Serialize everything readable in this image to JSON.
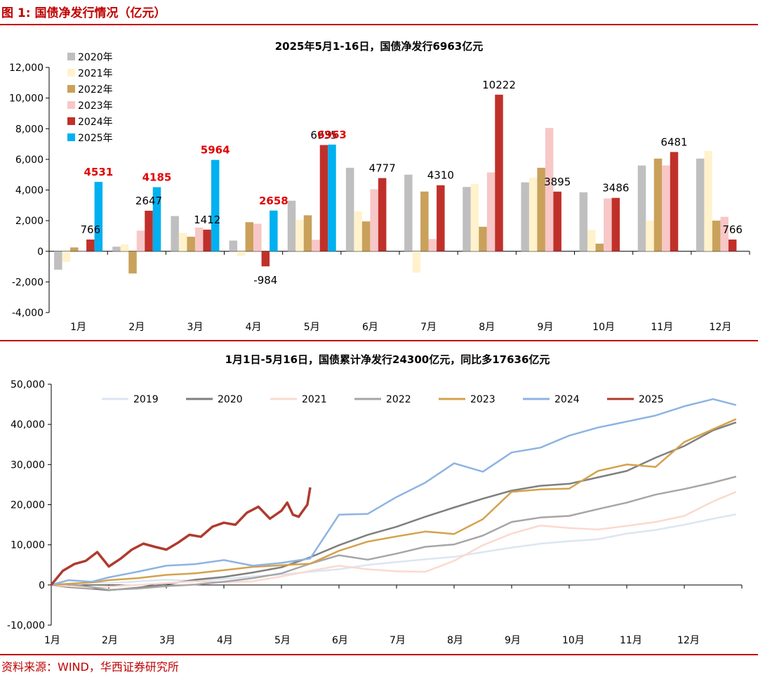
{
  "figure_title": "图 1:  国债净发行情况（亿元）",
  "source_note": "资料来源：WIND，华西证券研究所",
  "colors": {
    "brand_red": "#c00000",
    "y2020": "#bfbfbf",
    "y2021": "#fff2cc",
    "y2022": "#c9a15a",
    "y2023": "#f8c7c7",
    "y2024": "#c0302a",
    "y2025": "#00b0f0",
    "highlight_label": "#e00000",
    "l2019": "#dce6f2",
    "l2020": "#7f7f7f",
    "l2021": "#fbd9cf",
    "l2022": "#a6a6a6",
    "l2023": "#d4a24c",
    "l2024": "#8db4e2",
    "l2025": "#b03a2e"
  },
  "chart_data": [
    {
      "type": "bar",
      "title": "2025年5月1-16日，国债净发行6963亿元",
      "categories": [
        "1月",
        "2月",
        "3月",
        "4月",
        "5月",
        "6月",
        "7月",
        "8月",
        "9月",
        "10月",
        "11月",
        "12月"
      ],
      "ylim": [
        -4000,
        12000
      ],
      "yticks": [
        -4000,
        -2000,
        0,
        2000,
        4000,
        6000,
        8000,
        10000,
        12000
      ],
      "ytick_labels": [
        "-4,000",
        "-2,000",
        "0",
        "2,000",
        "4,000",
        "6,000",
        "8,000",
        "10,000",
        "12,000"
      ],
      "legend_position": "top-left",
      "series": [
        {
          "name": "2020年",
          "color_key": "y2020",
          "values": [
            -1200,
            300,
            2300,
            700,
            3300,
            5450,
            5000,
            4200,
            4500,
            3850,
            5600,
            6050
          ]
        },
        {
          "name": "2021年",
          "color_key": "y2021",
          "values": [
            -700,
            450,
            1200,
            -300,
            2050,
            2600,
            -1400,
            4400,
            4800,
            1400,
            2000,
            6550
          ]
        },
        {
          "name": "2022年",
          "color_key": "y2022",
          "values": [
            250,
            -1450,
            950,
            1900,
            2350,
            1950,
            3900,
            1600,
            5450,
            500,
            6050,
            2000
          ]
        },
        {
          "name": "2023年",
          "color_key": "y2023",
          "values": [
            -50,
            1350,
            1550,
            1800,
            750,
            4050,
            800,
            5150,
            8050,
            3450,
            5600,
            2250
          ]
        },
        {
          "name": "2024年",
          "color_key": "y2024",
          "values": [
            766,
            2647,
            1412,
            -984,
            6935,
            4777,
            4310,
            10222,
            3895,
            3486,
            6481,
            766
          ]
        },
        {
          "name": "2025年",
          "color_key": "y2025",
          "values": [
            4531,
            4185,
            5964,
            2658,
            6963,
            null,
            null,
            null,
            null,
            null,
            null,
            null
          ]
        }
      ],
      "data_labels": [
        {
          "text": "766",
          "series": 4,
          "index": 0,
          "style": "black"
        },
        {
          "text": "2647",
          "series": 4,
          "index": 1,
          "style": "black"
        },
        {
          "text": "1412",
          "series": 4,
          "index": 2,
          "style": "black"
        },
        {
          "text": "-984",
          "series": 4,
          "index": 3,
          "style": "black"
        },
        {
          "text": "6935",
          "series": 4,
          "index": 4,
          "style": "black"
        },
        {
          "text": "4777",
          "series": 4,
          "index": 5,
          "style": "black"
        },
        {
          "text": "4310",
          "series": 4,
          "index": 6,
          "style": "black"
        },
        {
          "text": "10222",
          "series": 4,
          "index": 7,
          "style": "black"
        },
        {
          "text": "3895",
          "series": 4,
          "index": 8,
          "style": "black"
        },
        {
          "text": "3486",
          "series": 4,
          "index": 9,
          "style": "black"
        },
        {
          "text": "6481",
          "series": 4,
          "index": 10,
          "style": "black"
        },
        {
          "text": "766",
          "series": 4,
          "index": 11,
          "style": "black"
        },
        {
          "text": "4531",
          "series": 5,
          "index": 0,
          "style": "red"
        },
        {
          "text": "4185",
          "series": 5,
          "index": 1,
          "style": "red"
        },
        {
          "text": "5964",
          "series": 5,
          "index": 2,
          "style": "red"
        },
        {
          "text": "2658",
          "series": 5,
          "index": 3,
          "style": "red"
        },
        {
          "text": "6963",
          "series": 5,
          "index": 4,
          "style": "red"
        }
      ]
    },
    {
      "type": "line",
      "title": "1月1日-5月16日，国债累计净发行24300亿元，同比多17636亿元",
      "x_tick_labels": [
        "1月",
        "2月",
        "3月",
        "4月",
        "5月",
        "6月",
        "7月",
        "8月",
        "9月",
        "10月",
        "11月",
        "12月"
      ],
      "ylim": [
        -10000,
        50000
      ],
      "yticks": [
        -10000,
        0,
        10000,
        20000,
        30000,
        40000,
        50000
      ],
      "ytick_labels": [
        "-10,000",
        "0",
        "10,000",
        "20,000",
        "30,000",
        "40,000",
        "50,000"
      ],
      "legend_position": "top",
      "series": [
        {
          "name": "2019",
          "color_key": "l2019",
          "x": [
            1,
            1.3,
            1.7,
            2,
            2.5,
            3,
            3.5,
            4,
            4.5,
            5,
            5.5,
            6,
            6.5,
            7,
            7.5,
            8,
            8.5,
            9,
            9.5,
            10,
            10.5,
            11,
            11.5,
            12,
            12.5,
            12.9
          ],
          "values": [
            0,
            300,
            600,
            400,
            900,
            1300,
            1000,
            1500,
            2100,
            2600,
            3300,
            3900,
            5000,
            5700,
            6400,
            7000,
            8200,
            9300,
            10300,
            10900,
            11400,
            12800,
            13700,
            15000,
            16500,
            17600
          ]
        },
        {
          "name": "2020",
          "color_key": "l2020",
          "x": [
            1,
            1.3,
            1.7,
            2,
            2.5,
            3,
            3.5,
            4,
            4.5,
            5,
            5.5,
            6,
            6.5,
            7,
            7.5,
            8,
            8.5,
            9,
            9.5,
            10,
            10.5,
            11,
            11.5,
            12,
            12.5,
            12.9
          ],
          "values": [
            0,
            -500,
            -900,
            -1300,
            -700,
            200,
            1300,
            2000,
            3100,
            4400,
            6900,
            9900,
            12500,
            14500,
            17000,
            19300,
            21500,
            23500,
            24700,
            25200,
            26800,
            28400,
            31700,
            34600,
            38500,
            40500
          ]
        },
        {
          "name": "2021",
          "color_key": "l2021",
          "x": [
            1,
            1.3,
            1.7,
            2,
            2.5,
            3,
            3.5,
            4,
            4.5,
            5,
            5.5,
            6,
            6.5,
            7,
            7.5,
            8,
            8.5,
            9,
            9.5,
            10,
            10.5,
            11,
            11.5,
            12,
            12.5,
            12.9
          ],
          "values": [
            0,
            -300,
            -700,
            -400,
            0,
            500,
            900,
            700,
            900,
            2100,
            3500,
            4800,
            3900,
            3400,
            3300,
            6000,
            9900,
            12800,
            14800,
            14200,
            13800,
            14700,
            15700,
            17200,
            20800,
            23200
          ]
        },
        {
          "name": "2022",
          "color_key": "l2022",
          "x": [
            1,
            1.3,
            1.7,
            2,
            2.5,
            3,
            3.5,
            4,
            4.5,
            5,
            5.5,
            6,
            6.5,
            7,
            7.5,
            8,
            8.5,
            9,
            9.5,
            10,
            10.5,
            11,
            11.5,
            12,
            12.5,
            12.9
          ],
          "values": [
            0,
            200,
            -500,
            -1200,
            -900,
            -300,
            100,
            800,
            1700,
            2900,
            5300,
            7400,
            6300,
            7800,
            9500,
            10100,
            12300,
            15700,
            16800,
            17200,
            18900,
            20500,
            22500,
            23900,
            25500,
            27000
          ]
        },
        {
          "name": "2023",
          "color_key": "l2023",
          "x": [
            1,
            1.3,
            1.7,
            2,
            2.5,
            3,
            3.5,
            4,
            4.5,
            5,
            5.5,
            6,
            6.5,
            7,
            7.5,
            8,
            8.5,
            9,
            9.5,
            10,
            10.5,
            11,
            11.5,
            12,
            12.5,
            12.9
          ],
          "values": [
            0,
            300,
            600,
            1200,
            1700,
            2500,
            2900,
            3700,
            4500,
            4900,
            5300,
            8500,
            10800,
            12100,
            13300,
            12700,
            16400,
            23200,
            23800,
            24000,
            28400,
            30000,
            29400,
            35600,
            38800,
            41300
          ]
        },
        {
          "name": "2024",
          "color_key": "l2024",
          "x": [
            1,
            1.3,
            1.7,
            2,
            2.5,
            3,
            3.5,
            4,
            4.5,
            5,
            5.5,
            6,
            6.5,
            7,
            7.5,
            8,
            8.5,
            9,
            9.5,
            10,
            10.5,
            11,
            11.5,
            12,
            12.5,
            12.9
          ],
          "values": [
            0,
            1200,
            800,
            1900,
            3300,
            4800,
            5200,
            6200,
            4800,
            5500,
            6600,
            17500,
            17700,
            21900,
            25500,
            30300,
            28200,
            33000,
            34200,
            37200,
            39200,
            40700,
            42200,
            44500,
            46300,
            44800
          ]
        },
        {
          "name": "2025",
          "color_key": "l2025",
          "x": [
            1,
            1.2,
            1.4,
            1.6,
            1.8,
            2,
            2.2,
            2.4,
            2.6,
            2.8,
            3,
            3.2,
            3.4,
            3.6,
            3.8,
            4,
            4.2,
            4.4,
            4.6,
            4.8,
            5,
            5.1,
            5.2,
            5.3,
            5.35,
            5.45,
            5.5
          ],
          "values": [
            0,
            3500,
            5200,
            6000,
            8200,
            4600,
            6500,
            8800,
            10300,
            9500,
            8800,
            10500,
            12500,
            12000,
            14500,
            15500,
            15000,
            18000,
            19500,
            16500,
            18500,
            20500,
            17500,
            17000,
            18000,
            20000,
            24300
          ]
        }
      ]
    }
  ]
}
